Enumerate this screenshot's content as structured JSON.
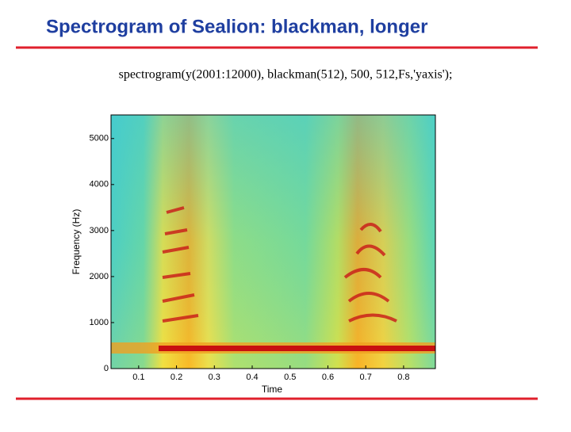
{
  "slide": {
    "title": "Spectrogram of Sealion: blackman, longer",
    "code": "spectrogram(y(2001:12000), blackman(512), 500, 512,Fs,'yaxis');"
  },
  "chart_data": {
    "type": "spectrogram",
    "xlabel": "Time",
    "ylabel": "Frequency (Hz)",
    "xlim": [
      0.027,
      0.884
    ],
    "xticks": [
      0.1,
      0.2,
      0.3,
      0.4,
      0.5,
      0.6,
      0.7,
      0.8
    ],
    "ylim": [
      0,
      5512.5
    ],
    "yticks": [
      0,
      1000,
      2000,
      3000,
      4000,
      5000
    ]
  }
}
